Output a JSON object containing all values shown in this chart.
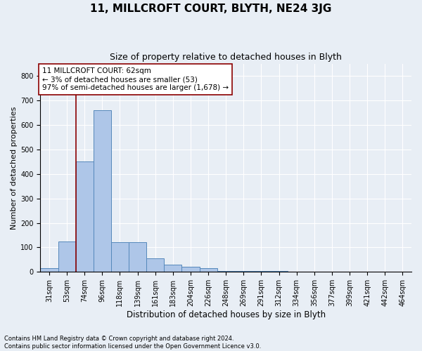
{
  "title": "11, MILLCROFT COURT, BLYTH, NE24 3JG",
  "subtitle": "Size of property relative to detached houses in Blyth",
  "xlabel": "Distribution of detached houses by size in Blyth",
  "ylabel": "Number of detached properties",
  "footnote": "Contains HM Land Registry data © Crown copyright and database right 2024.\nContains public sector information licensed under the Open Government Licence v3.0.",
  "bin_labels": [
    "31sqm",
    "53sqm",
    "74sqm",
    "96sqm",
    "118sqm",
    "139sqm",
    "161sqm",
    "183sqm",
    "204sqm",
    "226sqm",
    "248sqm",
    "269sqm",
    "291sqm",
    "312sqm",
    "334sqm",
    "356sqm",
    "377sqm",
    "399sqm",
    "421sqm",
    "442sqm",
    "464sqm"
  ],
  "bar_heights": [
    15,
    125,
    450,
    660,
    120,
    120,
    55,
    30,
    20,
    15,
    5,
    5,
    5,
    5,
    0,
    0,
    0,
    0,
    0,
    0,
    0
  ],
  "bar_color": "#aec6e8",
  "bar_edge_color": "#5588bb",
  "property_line_x": 1.5,
  "property_line_color": "#8b0000",
  "annotation_line1": "11 MILLCROFT COURT: 62sqm",
  "annotation_line2": "← 3% of detached houses are smaller (53)",
  "annotation_line3": "97% of semi-detached houses are larger (1,678) →",
  "annotation_box_color": "white",
  "annotation_box_edge_color": "#8b0000",
  "ylim": [
    0,
    850
  ],
  "yticks": [
    0,
    100,
    200,
    300,
    400,
    500,
    600,
    700,
    800
  ],
  "background_color": "#e8eef5",
  "title_fontsize": 11,
  "subtitle_fontsize": 9,
  "axis_label_fontsize": 8.5,
  "tick_fontsize": 7,
  "annotation_fontsize": 7.5,
  "ylabel_fontsize": 8
}
